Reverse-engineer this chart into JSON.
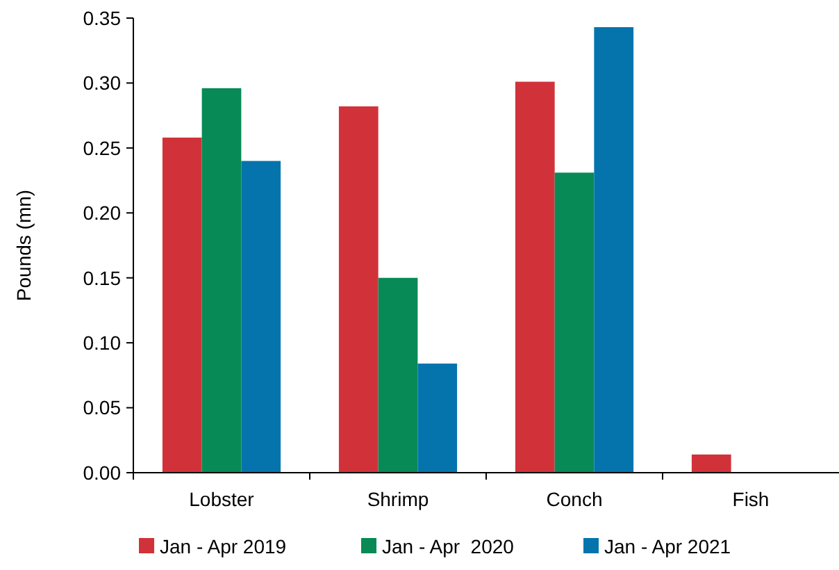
{
  "chart_data": {
    "type": "bar",
    "ylabel": "Pounds (mn)",
    "categories": [
      "Lobster",
      "Shrimp",
      "Conch",
      "Fish"
    ],
    "series": [
      {
        "name": "Jan - Apr 2019",
        "color": "#d13239",
        "values": [
          0.258,
          0.282,
          0.301,
          0.014
        ]
      },
      {
        "name": "Jan - Apr  2020",
        "color": "#078a55",
        "values": [
          0.296,
          0.15,
          0.231,
          0
        ]
      },
      {
        "name": "Jan - Apr 2021",
        "color": "#0574ad",
        "values": [
          0.24,
          0.084,
          0.343,
          0
        ]
      }
    ],
    "ylim": [
      0,
      0.35
    ],
    "yticks": [
      {
        "value": 0,
        "label": "0.00"
      },
      {
        "value": 0.05,
        "label": "0.05"
      },
      {
        "value": 0.1,
        "label": "0.10"
      },
      {
        "value": 0.15,
        "label": "0.15"
      },
      {
        "value": 0.2,
        "label": "0.20"
      },
      {
        "value": 0.25,
        "label": "0.25"
      },
      {
        "value": 0.3,
        "label": "0.30"
      },
      {
        "value": 0.35,
        "label": "0.35"
      }
    ],
    "grid": false,
    "legend": "bottom"
  }
}
